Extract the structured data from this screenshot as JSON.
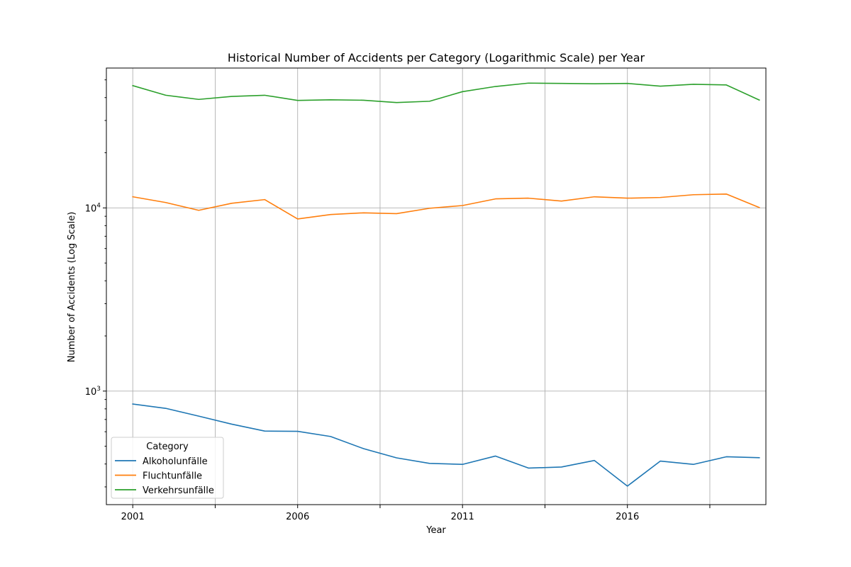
{
  "chart_data": {
    "type": "line",
    "title": "Historical Number of Accidents per Category (Logarithmic Scale) per Year",
    "xlabel": "Year",
    "ylabel": "Number of Accidents (Log Scale)",
    "yscale": "log",
    "xlim": [
      2000.2,
      2020.2
    ],
    "ylim": [
      240,
      58000
    ],
    "grid": true,
    "x_ticks": [
      2001,
      2006,
      2011,
      2016
    ],
    "x_minor_ticks": [
      2003.5,
      2008.5,
      2013.5,
      2018.5
    ],
    "y_tick_labels": [
      {
        "base": "10",
        "exp": "3",
        "value": 1000
      },
      {
        "base": "10",
        "exp": "4",
        "value": 10000
      }
    ],
    "legend": {
      "title": "Category",
      "position": "lower-left"
    },
    "x": [
      2001,
      2002,
      2003,
      2004,
      2005,
      2006,
      2007,
      2008,
      2009,
      2010,
      2011,
      2012,
      2013,
      2014,
      2015,
      2016,
      2017,
      2018,
      2019,
      2020
    ],
    "series": [
      {
        "name": "Alkoholunfälle",
        "color": "#1f77b4",
        "values": [
          850,
          805,
          730,
          660,
          605,
          603,
          565,
          485,
          432,
          403,
          398,
          442,
          380,
          385,
          418,
          303,
          415,
          398,
          438,
          433
        ]
      },
      {
        "name": "Fluchtunfälle",
        "color": "#ff7f0e",
        "values": [
          11500,
          10700,
          9700,
          10600,
          11100,
          8700,
          9200,
          9400,
          9300,
          9950,
          10300,
          11200,
          11300,
          10900,
          11500,
          11300,
          11400,
          11800,
          11900,
          10050
        ]
      },
      {
        "name": "Verkehrsunfälle",
        "color": "#2ca02c",
        "values": [
          46500,
          41200,
          39100,
          40600,
          41200,
          38600,
          38900,
          38700,
          37600,
          38200,
          43100,
          46000,
          48000,
          47800,
          47600,
          47800,
          46200,
          47300,
          46900,
          38800
        ]
      }
    ]
  }
}
